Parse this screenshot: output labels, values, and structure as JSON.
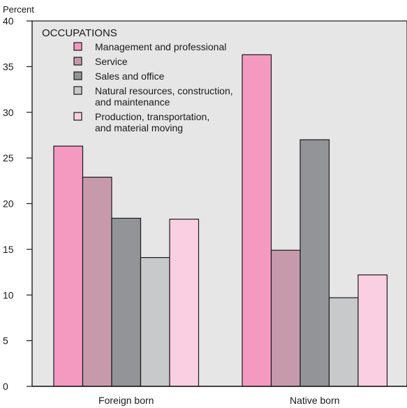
{
  "chart_data": {
    "type": "bar",
    "ylabel": "Percent",
    "ylim": [
      0,
      40
    ],
    "yticks": [
      0,
      5,
      10,
      15,
      20,
      25,
      30,
      35,
      40
    ],
    "categories": [
      "Foreign born",
      "Native born"
    ],
    "legend_title": "OCCUPATIONS",
    "legend_position": "top-left",
    "grid": false,
    "background_color": "#e6e6e6",
    "series": [
      {
        "name": "Management and professional",
        "name_lines": [
          "Management and professional"
        ],
        "color": "#f49ac1",
        "values": [
          26.3,
          36.3
        ]
      },
      {
        "name": "Service",
        "name_lines": [
          "Service"
        ],
        "color": "#c79aab",
        "values": [
          22.9,
          14.9
        ]
      },
      {
        "name": "Sales and office",
        "name_lines": [
          "Sales and office"
        ],
        "color": "#929497",
        "values": [
          18.4,
          27.0
        ]
      },
      {
        "name": "Natural resources, construction, and maintenance",
        "name_lines": [
          "Natural resources, construction,",
          "and maintenance"
        ],
        "color": "#c8c9cb",
        "values": [
          14.1,
          9.7
        ]
      },
      {
        "name": "Production, transportation, and material moving",
        "name_lines": [
          "Production, transportation,",
          "and material moving"
        ],
        "color": "#fbcfe2",
        "values": [
          18.3,
          12.2
        ]
      }
    ]
  }
}
